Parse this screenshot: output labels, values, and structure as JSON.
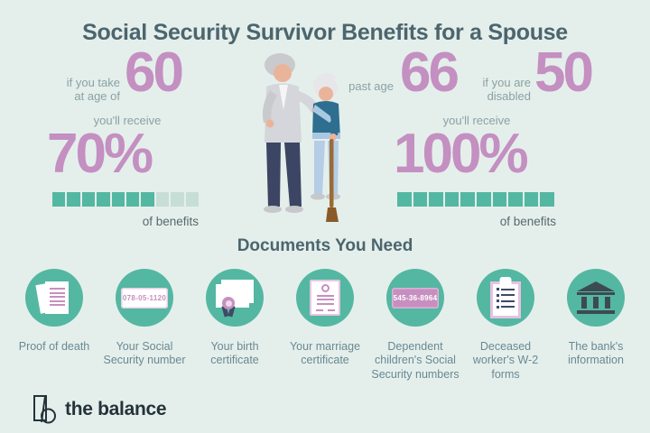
{
  "colors": {
    "background": "#e4efeb",
    "heading": "#4c656e",
    "accent_pink": "#c48fc1",
    "teal": "#54b7a2",
    "bar_unfilled": "#c7ded7",
    "muted_text": "#8ba1a4",
    "benefits_text": "#57696e",
    "label_text": "#6a8893",
    "icon_pink": "#c78fc0",
    "icon_navy": "#3e4a64",
    "bank_dark": "#3c4a52",
    "brand_text": "#24333a"
  },
  "header": {
    "title": "Social Security Survivor Benefits for a Spouse"
  },
  "stats": {
    "left": {
      "condition": "if you take\nat age of",
      "age": "60",
      "receive_label": "you'll receive",
      "percent": "70%",
      "benefits_label": "of benefits",
      "bar": {
        "total": 10,
        "filled": 7
      }
    },
    "right": {
      "condition_past": "past age",
      "age_past": "66",
      "condition_disabled": "if you are\ndisabled",
      "age_disabled": "50",
      "receive_label": "you'll receive",
      "percent": "100%",
      "benefits_label": "of benefits",
      "bar": {
        "total": 10,
        "filled": 10
      }
    }
  },
  "documents": {
    "heading": "Documents You Need",
    "items": [
      {
        "label": "Proof of death"
      },
      {
        "label": "Your Social Security number",
        "card_number": "078-05-1120"
      },
      {
        "label": "Your birth certificate"
      },
      {
        "label": "Your marriage certificate"
      },
      {
        "label": "Dependent children's Social Security numbers",
        "card_number": "545-36-8964"
      },
      {
        "label": "Deceased worker's W-2 forms"
      },
      {
        "label": "The bank's information"
      }
    ]
  },
  "footer": {
    "brand": "the balance"
  }
}
